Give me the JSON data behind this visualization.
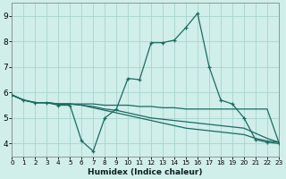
{
  "xlabel": "Humidex (Indice chaleur)",
  "background_color": "#d0eeea",
  "grid_color": "#a8d4ce",
  "line_color": "#1a6b62",
  "xlim": [
    0,
    23
  ],
  "ylim": [
    3.5,
    9.5
  ],
  "xticks": [
    0,
    1,
    2,
    3,
    4,
    5,
    6,
    7,
    8,
    9,
    10,
    11,
    12,
    13,
    14,
    15,
    16,
    17,
    18,
    19,
    20,
    21,
    22,
    23
  ],
  "yticks": [
    4,
    5,
    6,
    7,
    8,
    9
  ],
  "lines": [
    {
      "y": [
        5.9,
        5.7,
        5.6,
        5.6,
        5.5,
        5.5,
        4.1,
        3.7,
        5.0,
        5.35,
        6.55,
        6.5,
        7.95,
        7.95,
        8.05,
        8.55,
        9.1,
        7.0,
        5.7,
        5.55,
        5.0,
        4.15,
        4.05,
        4.0
      ],
      "marker": true
    },
    {
      "y": [
        5.9,
        5.7,
        5.6,
        5.6,
        5.55,
        5.55,
        5.55,
        5.55,
        5.5,
        5.5,
        5.5,
        5.45,
        5.45,
        5.4,
        5.4,
        5.35,
        5.35,
        5.35,
        5.35,
        5.35,
        5.35,
        5.35,
        5.35,
        4.05
      ],
      "marker": false
    },
    {
      "y": [
        5.9,
        5.7,
        5.6,
        5.6,
        5.55,
        5.55,
        5.5,
        5.45,
        5.35,
        5.3,
        5.2,
        5.1,
        5.0,
        4.95,
        4.9,
        4.85,
        4.8,
        4.75,
        4.7,
        4.65,
        4.6,
        4.4,
        4.2,
        4.05
      ],
      "marker": false
    },
    {
      "y": [
        5.9,
        5.7,
        5.6,
        5.6,
        5.55,
        5.55,
        5.5,
        5.4,
        5.3,
        5.2,
        5.1,
        5.0,
        4.9,
        4.8,
        4.7,
        4.6,
        4.55,
        4.5,
        4.45,
        4.4,
        4.35,
        4.2,
        4.1,
        4.05
      ],
      "marker": false
    }
  ]
}
